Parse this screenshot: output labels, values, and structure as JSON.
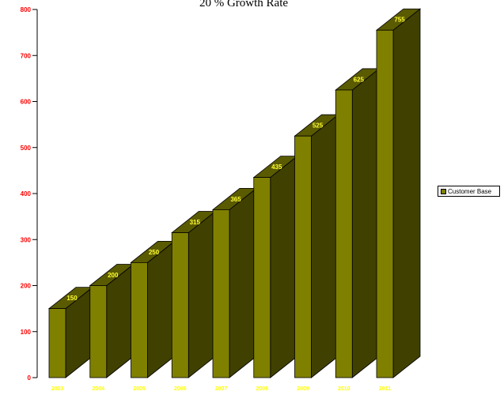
{
  "chart_data": {
    "type": "bar",
    "title": "20 % Growth Rate",
    "categories": [
      "2003",
      "2004",
      "2005",
      "2006",
      "2007",
      "2008",
      "2009",
      "2010",
      "2011"
    ],
    "series": [
      {
        "name": "Customer Base",
        "values": [
          150,
          200,
          250,
          315,
          365,
          435,
          525,
          625,
          755
        ],
        "data_labels": [
          "150",
          "200",
          "250",
          "315",
          "365",
          "435",
          "525",
          "625",
          "755"
        ]
      }
    ],
    "ylim": [
      0,
      800
    ],
    "yticks": [
      "0",
      "100",
      "200",
      "300",
      "400",
      "500",
      "600",
      "700",
      "800"
    ],
    "grid": false,
    "legend": "right",
    "colors": {
      "bar_front": "#808000",
      "bar_side": "#404000",
      "bar_top": "#5a5a00",
      "ytick_text": "#ff0000",
      "xtick_text": "#ffff00",
      "data_label": "#ffff33"
    }
  }
}
